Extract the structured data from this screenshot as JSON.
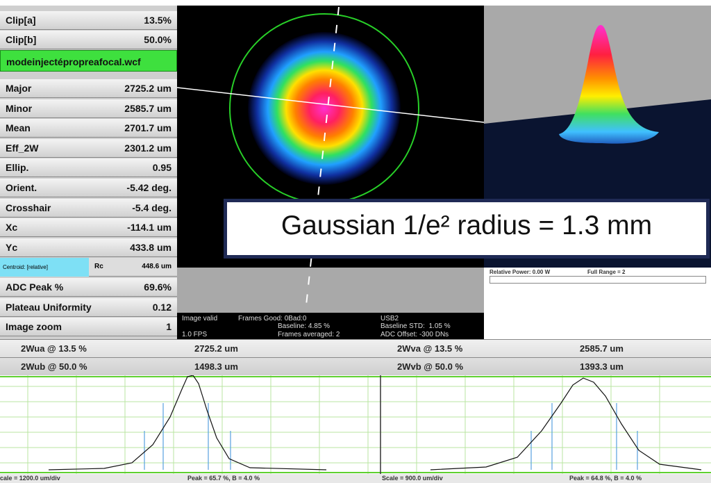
{
  "sidebar": {
    "clip_rows": [
      {
        "label": "Clip[a]",
        "value": "13.5%"
      },
      {
        "label": "Clip[b]",
        "value": "50.0%"
      }
    ],
    "filename": "modeinjectépropreafocal.wcf",
    "rows": [
      {
        "label": "Major",
        "value": "2725.2 um"
      },
      {
        "label": "Minor",
        "value": "2585.7 um"
      },
      {
        "label": "Mean",
        "value": "2701.7 um"
      },
      {
        "label": "Eff_2W",
        "value": "2301.2 um"
      },
      {
        "label": "Ellip.",
        "value": "0.95"
      },
      {
        "label": "Orient.",
        "value": "-5.42 deg."
      },
      {
        "label": "Crosshair",
        "value": "-5.4 deg."
      },
      {
        "label": "Xc",
        "value": "-114.1 um"
      },
      {
        "label": "Yc",
        "value": "433.8 um"
      }
    ],
    "centroid": {
      "label": "Centroid: [relative]",
      "name": "Rc",
      "value": "448.6 um"
    },
    "bottom_rows": [
      {
        "label": "ADC Peak %",
        "value": "69.6%"
      },
      {
        "label": "Plateau Uniformity",
        "value": "0.12"
      },
      {
        "label": "Image zoom",
        "value": "1"
      }
    ]
  },
  "status": {
    "image_valid": "Image valid",
    "fps": "1.0 FPS",
    "frames_good": "Frames Good: 0Bad:0",
    "baseline": "Baseline: 4.85 %",
    "frames_averaged": "Frames averaged: 2",
    "usb": "USB2",
    "baseline_std": "Baseline STD:  1.05 %",
    "adc_offset": "ADC Offset: -300 DNs"
  },
  "power": {
    "relative_power": "Relative Power: 0.00 W",
    "full_range": "Full Range = 2"
  },
  "annotation": "Gaussian 1/e² radius = 1.3 mm",
  "profiles": [
    {
      "rows": [
        {
          "label": "2Wua @ 13.5 %",
          "value": "2725.2 um"
        },
        {
          "label": "2Wub @ 50.0 %",
          "value": "1498.3 um"
        }
      ],
      "scale": "cale = 1200.0 um/div",
      "peak": "Peak = 65.7 %,  B = 4.0 %"
    },
    {
      "rows": [
        {
          "label": "2Wva @ 13.5 %",
          "value": "2585.7 um"
        },
        {
          "label": "2Wvb @ 50.0 %",
          "value": "1393.3 um"
        }
      ],
      "scale": "Scale = 900.0 um/div",
      "peak": "Peak = 64.8 %,  B = 4.0 %"
    }
  ]
}
